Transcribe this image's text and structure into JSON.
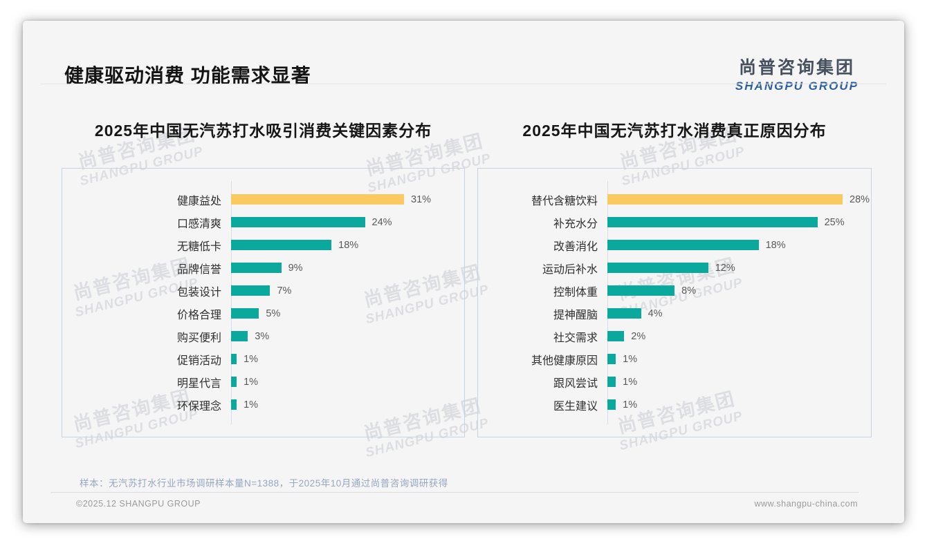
{
  "header": {
    "title": "健康驱动消费 功能需求显著",
    "logo": {
      "cn": "尚普咨询集团",
      "en": "SHANGPU GROUP"
    }
  },
  "watermark": {
    "line1": "尚普咨询集团",
    "line2": "SHANGPU GROUP"
  },
  "chart_data": [
    {
      "type": "bar",
      "orientation": "horizontal",
      "title": "2025年中国无汽苏打水吸引消费关键因素分布",
      "categories": [
        "健康益处",
        "口感清爽",
        "无糖低卡",
        "品牌信誉",
        "包装设计",
        "价格合理",
        "购买便利",
        "促销活动",
        "明星代言",
        "环保理念"
      ],
      "values": [
        31,
        24,
        18,
        9,
        7,
        5,
        3,
        1,
        1,
        1
      ],
      "unit": "%",
      "highlight_index": 0,
      "highlight_color": "#FBC961",
      "bar_color": "#0BA89D",
      "xlim": [
        0,
        35
      ],
      "grid": false,
      "legend": "none"
    },
    {
      "type": "bar",
      "orientation": "horizontal",
      "title": "2025年中国无汽苏打水消费真正原因分布",
      "categories": [
        "替代含糖饮料",
        "补充水分",
        "改善消化",
        "运动后补水",
        "控制体重",
        "提神醒脑",
        "社交需求",
        "其他健康原因",
        "跟风尝试",
        "医生建议"
      ],
      "values": [
        28,
        25,
        18,
        12,
        8,
        4,
        2,
        1,
        1,
        1
      ],
      "unit": "%",
      "highlight_index": 0,
      "highlight_color": "#FBC961",
      "bar_color": "#0BA89D",
      "xlim": [
        0,
        30
      ],
      "grid": false,
      "legend": "none"
    }
  ],
  "footnote": {
    "sample_note": "样本：无汽苏打水行业市场调研样本量N=1388，于2025年10月通过尚普咨询调研获得"
  },
  "footer": {
    "copyright": "©2025.12 SHANGPU GROUP",
    "website": "www.shangpu-china.com"
  }
}
